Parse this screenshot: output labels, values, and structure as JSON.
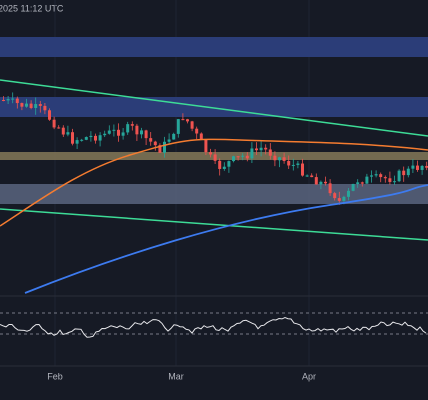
{
  "header": {
    "timestamp": "2025 11:12 UTC"
  },
  "x_axis": {
    "labels": [
      "Feb",
      "Mar",
      "Apr"
    ]
  }
}
